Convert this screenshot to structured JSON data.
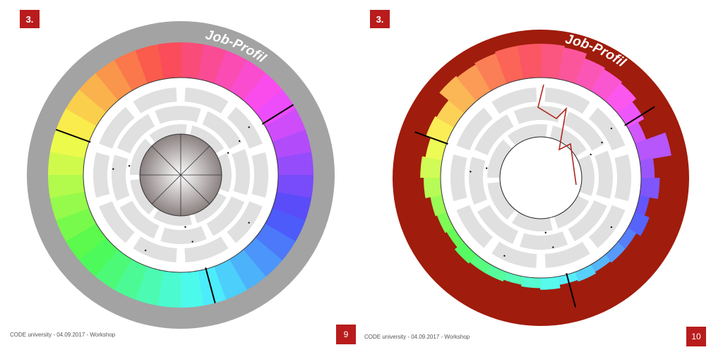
{
  "slides": [
    {
      "step_badge": "3.",
      "title": "Job-Profil",
      "footer": "CODE university - 04.09.2017 - Workshop",
      "page_number": "9",
      "colors": {
        "outer_ring": "#a3a3a3",
        "badge": "#b91c1c",
        "inner_panels": "#e0e0e0"
      },
      "levels": [
        1,
        1,
        1,
        1,
        1,
        1,
        1,
        1,
        1,
        1,
        1,
        1,
        1,
        1,
        1,
        1,
        1,
        1,
        1,
        1,
        1,
        1,
        1,
        1,
        1,
        1,
        1,
        1,
        1,
        1,
        1,
        1,
        1,
        1,
        1,
        1
      ],
      "center_style": "gradient-wheel"
    },
    {
      "step_badge": "3.",
      "title": "Job-Profil",
      "footer": "CODE university - 04.09.2017 - Workshop",
      "page_number": "10",
      "colors": {
        "outer_ring": "#a01c0c",
        "badge": "#b91c1c",
        "inner_panels": "#e0e0e0",
        "profile_line": "#b3261e"
      },
      "levels": [
        1,
        0.95,
        0.8,
        0.75,
        0.7,
        0.55,
        0.35,
        0.95,
        0.4,
        0.55,
        0.3,
        0.45,
        0.3,
        0.3,
        0.25,
        0.3,
        0.25,
        0.35,
        0.3,
        0.25,
        0.3,
        0.3,
        0.35,
        0.25,
        0.3,
        0.35,
        0.5,
        0.6,
        0.5,
        0.65,
        0.6,
        0.95,
        0.9,
        0.95,
        1,
        1
      ],
      "center_style": "empty"
    }
  ]
}
